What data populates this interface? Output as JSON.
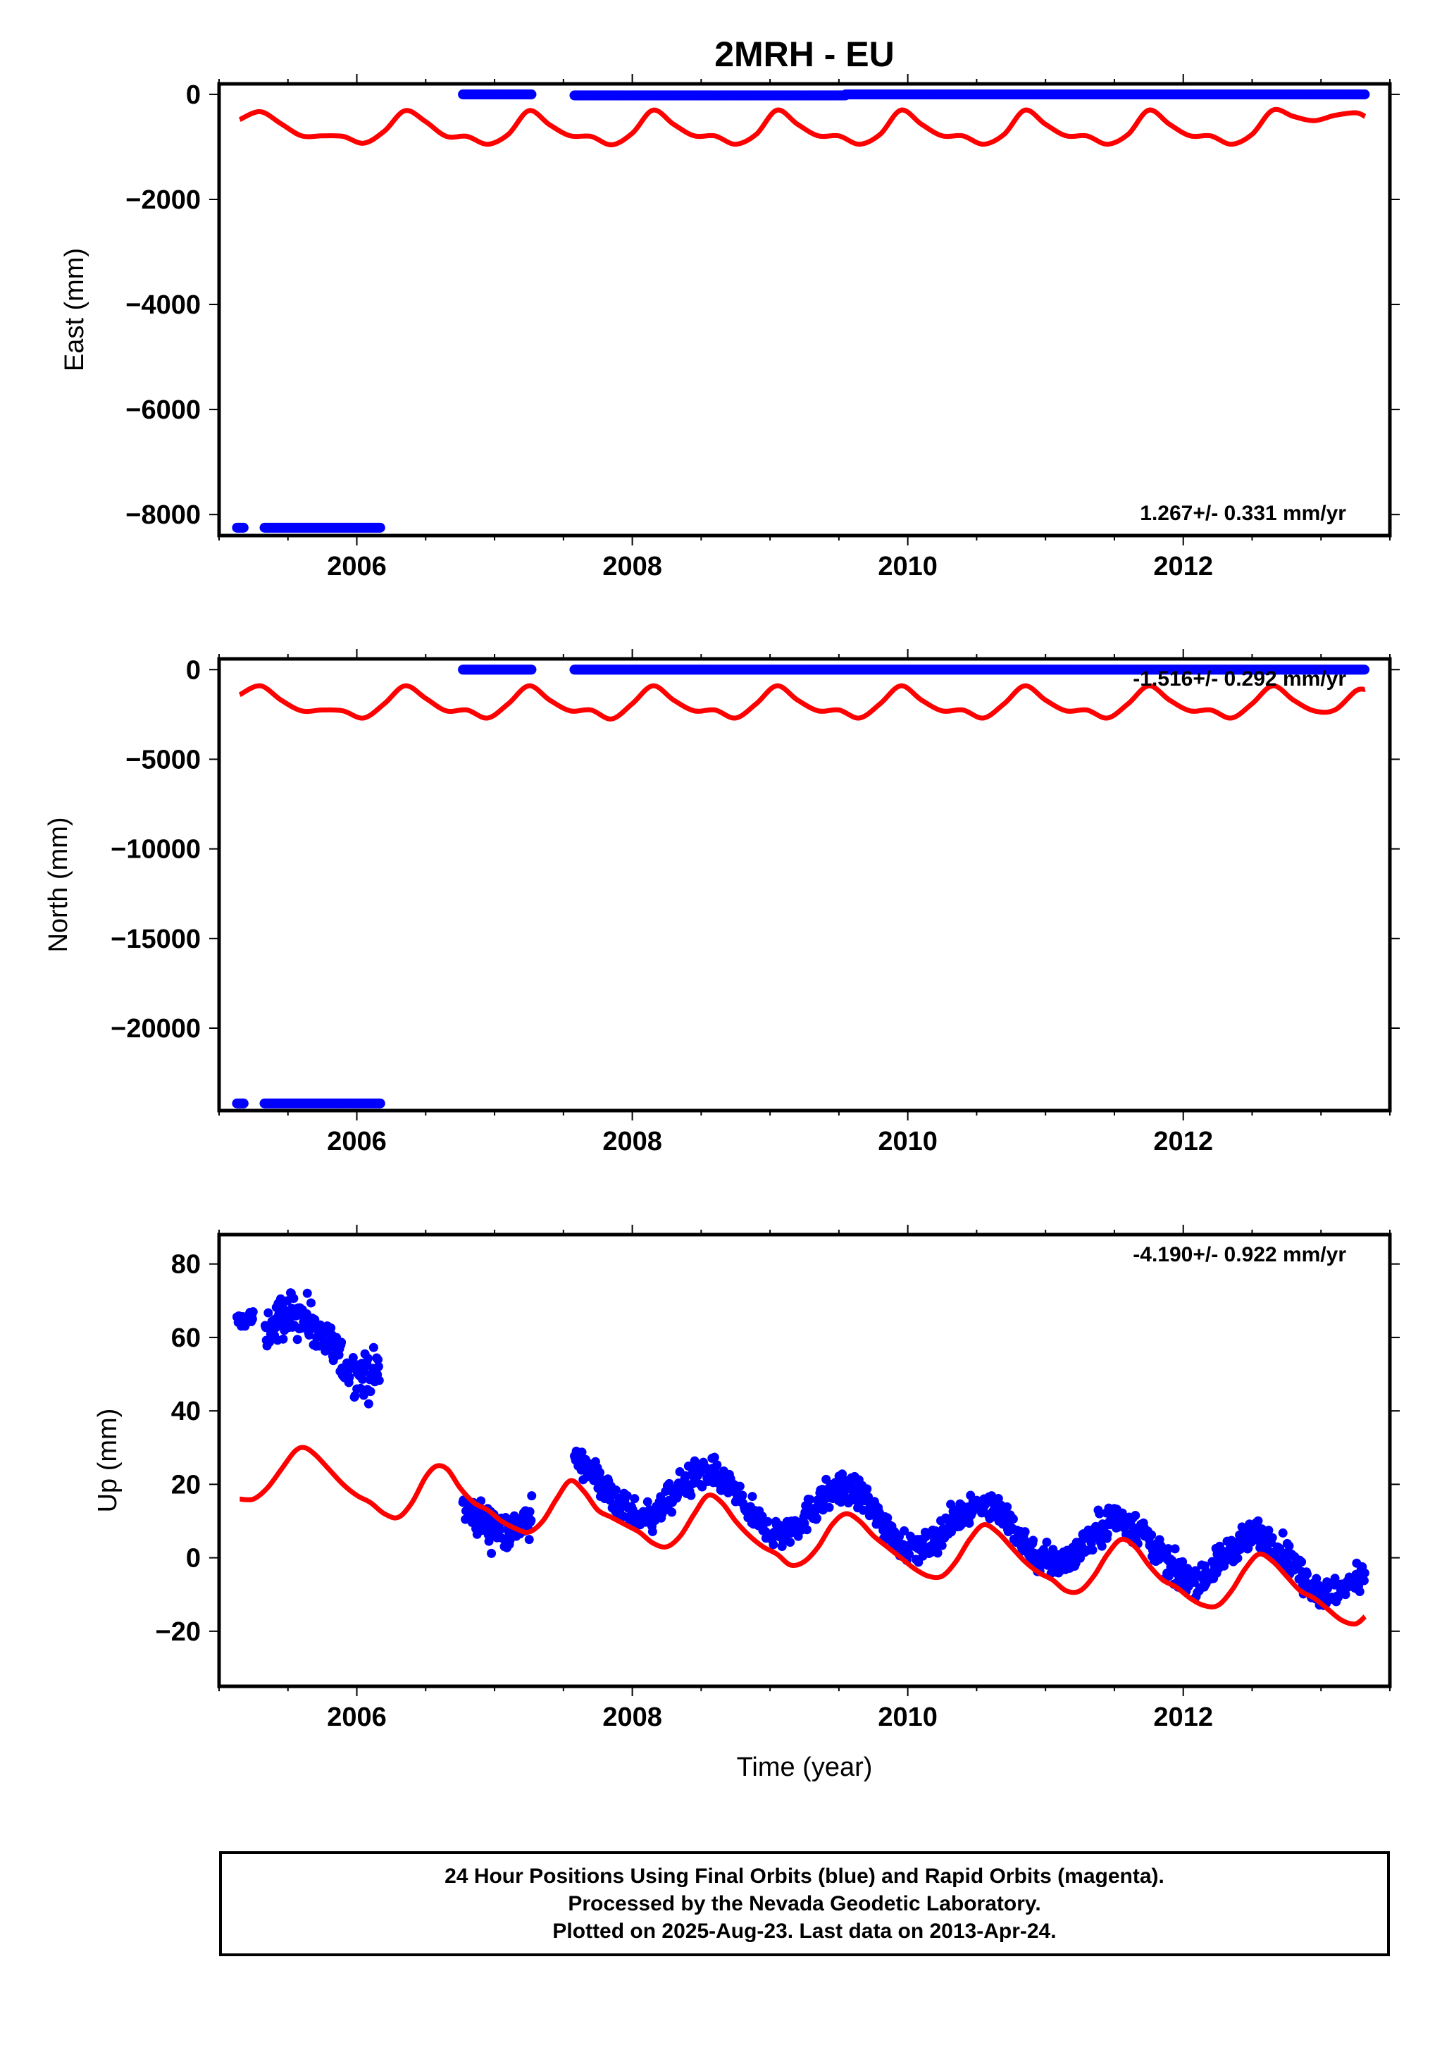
{
  "title": "2MRH - EU",
  "xlabel": "Time (year)",
  "colors": {
    "final": "#0000ff",
    "model": "#ff0000",
    "axis": "#000000"
  },
  "chart_data": [
    {
      "type": "scatter",
      "ylabel": "East (mm)",
      "rate": "1.267+/- 0.331 mm/yr",
      "xlim": [
        2005.0,
        2013.5
      ],
      "ylim": [
        -8400,
        200
      ],
      "yticks": [
        0,
        -2000,
        -4000,
        -6000,
        -8000
      ],
      "xticks": [
        2006,
        2008,
        2010,
        2012
      ],
      "series": [
        {
          "name": "final",
          "segments": [
            {
              "x0": 2005.13,
              "x1": 2005.18,
              "y": -8250
            },
            {
              "x0": 2005.33,
              "x1": 2006.17,
              "y": -8250
            },
            {
              "x0": 2006.77,
              "x1": 2007.27,
              "y": 0
            },
            {
              "x0": 2007.58,
              "x1": 2009.55,
              "y": -20
            },
            {
              "x0": 2009.55,
              "x1": 2013.32,
              "y": 0
            }
          ]
        },
        {
          "name": "model",
          "x": [
            2005.15,
            2005.3,
            2005.45,
            2005.6,
            2005.75,
            2005.9,
            2006.05,
            2006.2,
            2006.35,
            2006.5,
            2006.65,
            2006.8,
            2006.95,
            2007.1,
            2007.25,
            2007.4,
            2007.55,
            2007.7,
            2007.85,
            2008.0,
            2008.15,
            2008.3,
            2008.45,
            2008.6,
            2008.75,
            2008.9,
            2009.05,
            2009.2,
            2009.35,
            2009.5,
            2009.65,
            2009.8,
            2009.95,
            2010.1,
            2010.25,
            2010.4,
            2010.55,
            2010.7,
            2010.85,
            2011.0,
            2011.15,
            2011.3,
            2011.45,
            2011.6,
            2011.75,
            2011.9,
            2012.05,
            2012.2,
            2012.35,
            2012.5,
            2012.65,
            2012.8,
            2012.95,
            2013.1,
            2013.25,
            2013.32
          ],
          "y": [
            -480,
            -330,
            -560,
            -790,
            -790,
            -800,
            -930,
            -700,
            -310,
            -520,
            -800,
            -800,
            -950,
            -760,
            -310,
            -580,
            -790,
            -800,
            -960,
            -740,
            -300,
            -570,
            -790,
            -790,
            -950,
            -760,
            -300,
            -570,
            -790,
            -790,
            -950,
            -760,
            -300,
            -570,
            -790,
            -790,
            -950,
            -760,
            -300,
            -570,
            -790,
            -790,
            -950,
            -760,
            -300,
            -570,
            -790,
            -790,
            -950,
            -760,
            -300,
            -420,
            -500,
            -400,
            -350,
            -420
          ]
        }
      ]
    },
    {
      "type": "scatter",
      "ylabel": "North (mm)",
      "rate": "-1.516+/- 0.292 mm/yr",
      "xlim": [
        2005.0,
        2013.5
      ],
      "ylim": [
        -24600,
        600
      ],
      "yticks": [
        0,
        -5000,
        -10000,
        -15000,
        -20000
      ],
      "xticks": [
        2006,
        2008,
        2010,
        2012
      ],
      "series": [
        {
          "name": "final",
          "segments": [
            {
              "x0": 2005.13,
              "x1": 2005.18,
              "y": -24200
            },
            {
              "x0": 2005.33,
              "x1": 2006.17,
              "y": -24200
            },
            {
              "x0": 2006.77,
              "x1": 2007.27,
              "y": 0
            },
            {
              "x0": 2007.58,
              "x1": 2013.32,
              "y": 0
            }
          ]
        },
        {
          "name": "model",
          "x": [
            2005.15,
            2005.3,
            2005.45,
            2005.6,
            2005.75,
            2005.9,
            2006.05,
            2006.2,
            2006.35,
            2006.5,
            2006.65,
            2006.8,
            2006.95,
            2007.1,
            2007.25,
            2007.4,
            2007.55,
            2007.7,
            2007.85,
            2008.0,
            2008.15,
            2008.3,
            2008.45,
            2008.6,
            2008.75,
            2008.9,
            2009.05,
            2009.2,
            2009.35,
            2009.5,
            2009.65,
            2009.8,
            2009.95,
            2010.1,
            2010.25,
            2010.4,
            2010.55,
            2010.7,
            2010.85,
            2011.0,
            2011.15,
            2011.3,
            2011.45,
            2011.6,
            2011.75,
            2011.9,
            2012.05,
            2012.2,
            2012.35,
            2012.5,
            2012.65,
            2012.8,
            2012.95,
            2013.1,
            2013.25,
            2013.32
          ],
          "y": [
            -1400,
            -900,
            -1700,
            -2300,
            -2250,
            -2300,
            -2700,
            -1900,
            -900,
            -1600,
            -2300,
            -2250,
            -2700,
            -1900,
            -900,
            -1700,
            -2300,
            -2250,
            -2750,
            -1900,
            -900,
            -1700,
            -2300,
            -2250,
            -2700,
            -1900,
            -900,
            -1700,
            -2300,
            -2250,
            -2700,
            -1900,
            -900,
            -1700,
            -2300,
            -2250,
            -2700,
            -1900,
            -900,
            -1700,
            -2300,
            -2250,
            -2700,
            -1900,
            -900,
            -1700,
            -2300,
            -2250,
            -2700,
            -1900,
            -900,
            -1700,
            -2300,
            -2250,
            -1200,
            -1100
          ]
        }
      ]
    },
    {
      "type": "scatter",
      "ylabel": "Up (mm)",
      "rate": "-4.190+/- 0.922 mm/yr",
      "xlim": [
        2005.0,
        2013.5
      ],
      "ylim": [
        -35,
        88
      ],
      "yticks": [
        80,
        60,
        40,
        20,
        0,
        -20
      ],
      "xticks": [
        2006,
        2008,
        2010,
        2012
      ],
      "series": [
        {
          "name": "final",
          "clusters": [
            {
              "x0": 2005.13,
              "x1": 2005.25,
              "center": 66,
              "amplitude": 2,
              "noise": 3,
              "trend": 0
            },
            {
              "x0": 2005.33,
              "x1": 2006.17,
              "center": 58,
              "amplitude": 8,
              "noise": 7,
              "trend": -2
            },
            {
              "x0": 2006.77,
              "x1": 2007.27,
              "center": 12,
              "amplitude": 4,
              "noise": 6,
              "trend": -4
            },
            {
              "x0": 2007.58,
              "x1": 2013.32,
              "center": 8,
              "amplitude": 7,
              "noise": 5,
              "trend": -4.19
            }
          ]
        },
        {
          "name": "model",
          "x": [
            2005.15,
            2005.25,
            2005.35,
            2005.45,
            2005.55,
            2005.62,
            2005.7,
            2005.8,
            2005.9,
            2006.0,
            2006.1,
            2006.2,
            2006.3,
            2006.4,
            2006.5,
            2006.58,
            2006.66,
            2006.75,
            2006.85,
            2006.95,
            2007.05,
            2007.15,
            2007.25,
            2007.35,
            2007.45,
            2007.55,
            2007.65,
            2007.75,
            2007.85,
            2007.95,
            2008.05,
            2008.15,
            2008.25,
            2008.35,
            2008.45,
            2008.55,
            2008.65,
            2008.75,
            2008.85,
            2008.95,
            2009.05,
            2009.15,
            2009.25,
            2009.35,
            2009.45,
            2009.55,
            2009.65,
            2009.75,
            2009.85,
            2009.95,
            2010.05,
            2010.15,
            2010.25,
            2010.35,
            2010.45,
            2010.55,
            2010.65,
            2010.75,
            2010.85,
            2010.95,
            2011.05,
            2011.15,
            2011.25,
            2011.35,
            2011.45,
            2011.55,
            2011.65,
            2011.75,
            2011.85,
            2011.95,
            2012.05,
            2012.15,
            2012.25,
            2012.35,
            2012.45,
            2012.55,
            2012.65,
            2012.75,
            2012.85,
            2012.95,
            2013.05,
            2013.15,
            2013.25,
            2013.32
          ],
          "y": [
            16,
            16,
            19,
            24,
            29,
            30,
            28,
            24,
            20,
            17,
            15,
            12,
            11,
            15,
            22,
            25,
            24,
            19,
            15,
            13,
            10,
            8,
            7,
            10,
            16,
            21,
            18,
            13,
            11,
            9,
            7,
            4,
            3,
            6,
            12,
            17,
            15,
            10,
            6,
            3,
            1,
            -2,
            -1,
            3,
            9,
            12,
            10,
            6,
            3,
            0,
            -3,
            -5,
            -5,
            -1,
            5,
            9,
            7,
            3,
            -1,
            -4,
            -6,
            -9,
            -9,
            -5,
            1,
            5,
            3,
            -2,
            -6,
            -8,
            -11,
            -13,
            -13,
            -9,
            -3,
            1,
            -1,
            -5,
            -9,
            -11,
            -14,
            -17,
            -18,
            -16
          ]
        }
      ]
    }
  ],
  "caption": {
    "line1": "24 Hour Positions Using Final Orbits (blue) and Rapid Orbits (magenta).",
    "line2": "Processed by the Nevada Geodetic Laboratory.",
    "line3": "Plotted on 2025-Aug-23. Last data on 2013-Apr-24."
  }
}
